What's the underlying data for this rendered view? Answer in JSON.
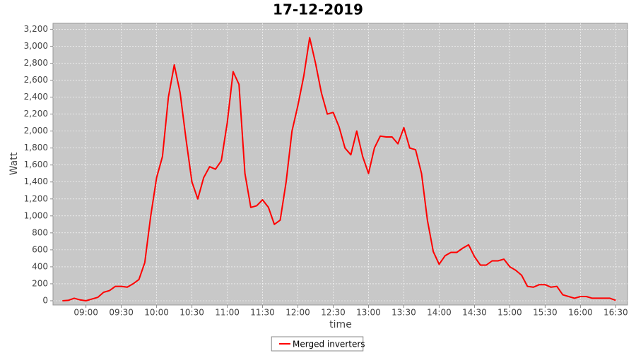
{
  "chart_data": {
    "type": "line",
    "title": "17-12-2019",
    "x_label": "time",
    "y_label": "Watt",
    "x": [
      "08:40",
      "08:45",
      "08:50",
      "08:55",
      "09:00",
      "09:05",
      "09:10",
      "09:15",
      "09:20",
      "09:25",
      "09:30",
      "09:35",
      "09:40",
      "09:45",
      "09:50",
      "09:55",
      "10:00",
      "10:05",
      "10:10",
      "10:15",
      "10:20",
      "10:25",
      "10:30",
      "10:35",
      "10:40",
      "10:45",
      "10:50",
      "10:55",
      "11:00",
      "11:05",
      "11:10",
      "11:15",
      "11:20",
      "11:25",
      "11:30",
      "11:35",
      "11:40",
      "11:45",
      "11:50",
      "11:55",
      "12:00",
      "12:05",
      "12:10",
      "12:15",
      "12:20",
      "12:25",
      "12:30",
      "12:35",
      "12:40",
      "12:45",
      "12:50",
      "12:55",
      "13:00",
      "13:05",
      "13:10",
      "13:15",
      "13:20",
      "13:25",
      "13:30",
      "13:35",
      "13:40",
      "13:45",
      "13:50",
      "13:55",
      "14:00",
      "14:05",
      "14:10",
      "14:15",
      "14:20",
      "14:25",
      "14:30",
      "14:35",
      "14:40",
      "14:45",
      "14:50",
      "14:55",
      "15:00",
      "15:05",
      "15:10",
      "15:15",
      "15:20",
      "15:25",
      "15:30",
      "15:35",
      "15:40",
      "15:45",
      "15:50",
      "15:55",
      "16:00",
      "16:05",
      "16:10",
      "16:15",
      "16:20",
      "16:25",
      "16:30"
    ],
    "series": [
      {
        "name": "Merged inverters",
        "color": "#ff0000",
        "values": [
          0,
          5,
          30,
          10,
          0,
          20,
          40,
          100,
          120,
          170,
          170,
          160,
          200,
          250,
          450,
          1000,
          1450,
          1700,
          2400,
          2780,
          2450,
          1900,
          1400,
          1200,
          1450,
          1580,
          1550,
          1650,
          2100,
          2700,
          2550,
          1500,
          1100,
          1120,
          1190,
          1100,
          900,
          950,
          1400,
          2000,
          2300,
          2650,
          3100,
          2800,
          2450,
          2200,
          2220,
          2050,
          1800,
          1720,
          2000,
          1700,
          1500,
          1800,
          1940,
          1930,
          1930,
          1850,
          2040,
          1800,
          1780,
          1500,
          950,
          580,
          430,
          530,
          570,
          570,
          620,
          660,
          520,
          420,
          420,
          470,
          470,
          490,
          400,
          360,
          300,
          170,
          160,
          190,
          190,
          160,
          170,
          70,
          50,
          30,
          50,
          50,
          30,
          30,
          30,
          30,
          5
        ]
      }
    ],
    "xlim": [
      "08:32",
      "16:40"
    ],
    "xticks": [
      "09:00",
      "09:30",
      "10:00",
      "10:30",
      "11:00",
      "11:30",
      "12:00",
      "12:30",
      "13:00",
      "13:30",
      "14:00",
      "14:30",
      "15:00",
      "15:30",
      "16:00",
      "16:30"
    ],
    "ylim": [
      -50,
      3270
    ],
    "yticks": [
      0,
      200,
      400,
      600,
      800,
      {
        "value": 1000,
        "label": "1,000"
      },
      {
        "value": 1200,
        "label": "1,200"
      },
      {
        "value": 1400,
        "label": "1,400"
      },
      {
        "value": 1600,
        "label": "1,600"
      },
      {
        "value": 1800,
        "label": "1,800"
      },
      {
        "value": 2000,
        "label": "2,000"
      },
      {
        "value": 2200,
        "label": "2,200"
      },
      {
        "value": 2400,
        "label": "2,400"
      },
      {
        "value": 2600,
        "label": "2,600"
      },
      {
        "value": 2800,
        "label": "2,800"
      },
      {
        "value": 3000,
        "label": "3,000"
      },
      {
        "value": 3200,
        "label": "3,200"
      }
    ],
    "grid": true,
    "legend": "bottom"
  }
}
